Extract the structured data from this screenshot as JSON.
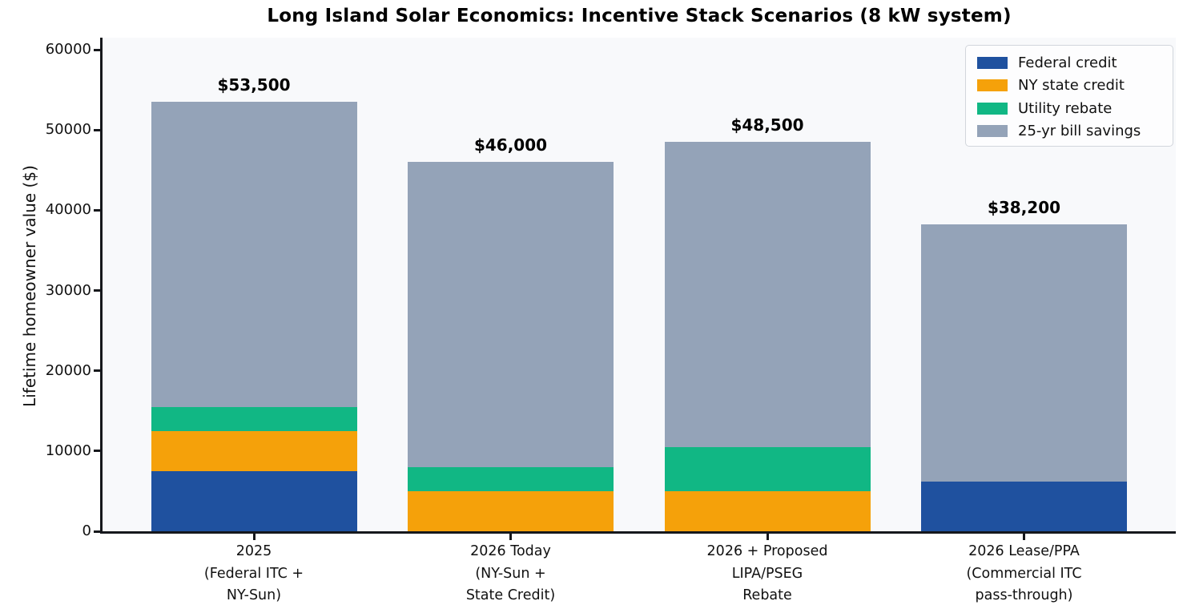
{
  "title": "Long Island Solar Economics: Incentive Stack Scenarios (8 kW system)",
  "colors": {
    "federal_credit": "#1f519f",
    "ny_state_credit": "#f5a10a",
    "utility_rebate": "#11b784",
    "bill_savings": "#94a3b8",
    "plot_background": "#f8f9fb",
    "figure_background": "#ffffff",
    "axis_line": "#16181c"
  },
  "chart_data": {
    "type": "bar",
    "stacked": true,
    "title": "Long Island Solar Economics: Incentive Stack Scenarios (8 kW system)",
    "xlabel": "",
    "ylabel": "Lifetime homeowner value ($)",
    "ylim": [
      0,
      61500
    ],
    "yticks": [
      0,
      10000,
      20000,
      30000,
      40000,
      50000,
      60000
    ],
    "ytick_labels": [
      "0",
      "10000",
      "20000",
      "30000",
      "40000",
      "50000",
      "60000"
    ],
    "grid": false,
    "legend_position": "upper right",
    "categories": [
      "2025 (Federal ITC + NY-Sun)",
      "2026 Today (NY-Sun + State Credit)",
      "2026 + Proposed LIPA/PSEG Rebate",
      "2026 Lease/PPA (Commercial ITC pass-through)"
    ],
    "category_label_lines": [
      [
        "2025",
        "(Federal ITC +",
        "NY-Sun)"
      ],
      [
        "2026 Today",
        "(NY-Sun +",
        "State Credit)"
      ],
      [
        "2026 + Proposed",
        "LIPA/PSEG",
        "Rebate"
      ],
      [
        "2026 Lease/PPA",
        "(Commercial ITC",
        "pass-through)"
      ]
    ],
    "series": [
      {
        "name": "Federal credit",
        "color": "#1f519f",
        "values": [
          7500,
          0,
          0,
          6200
        ]
      },
      {
        "name": "NY state credit",
        "color": "#f5a10a",
        "values": [
          5000,
          5000,
          5000,
          0
        ]
      },
      {
        "name": "Utility rebate",
        "color": "#11b784",
        "values": [
          3000,
          3000,
          5500,
          0
        ]
      },
      {
        "name": "25-yr bill savings",
        "color": "#94a3b8",
        "values": [
          38000,
          38000,
          38000,
          32000
        ]
      }
    ],
    "totals": [
      53500,
      46000,
      48500,
      38200
    ],
    "total_labels": [
      "$53,500",
      "$46,000",
      "$48,500",
      "$38,200"
    ]
  }
}
